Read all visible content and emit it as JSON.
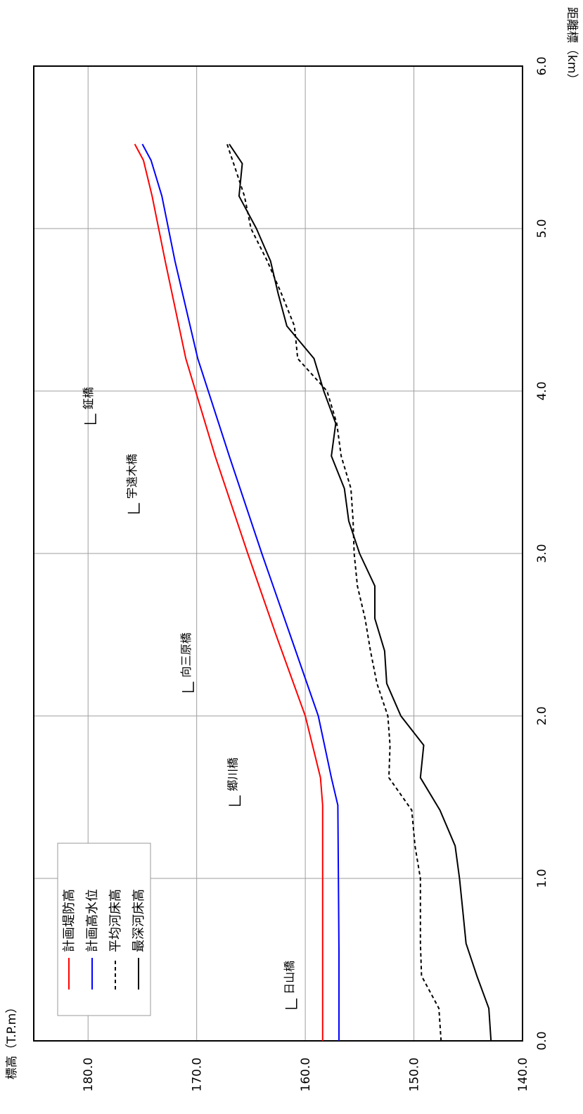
{
  "chart_data": {
    "type": "line",
    "title": "",
    "xlabel": "距離標（km）",
    "ylabel": "標高（T.P.m）",
    "xlim": [
      0.0,
      6.0
    ],
    "ylim": [
      140.0,
      185.0
    ],
    "x_ticks": [
      "0.0",
      "1.0",
      "2.0",
      "3.0",
      "4.0",
      "5.0",
      "6.0"
    ],
    "y_ticks": [
      "140.0",
      "150.0",
      "160.0",
      "170.0",
      "180.0"
    ],
    "grid": true,
    "legend_position": "top-left",
    "orientation": "rotated-90-clockwise",
    "series": [
      {
        "name": "計画堤防高",
        "color": "#ff0000",
        "style": "solid",
        "points": [
          [
            0.0,
            158.4
          ],
          [
            0.55,
            158.4
          ],
          [
            1.45,
            158.4
          ],
          [
            1.62,
            158.6
          ],
          [
            2.0,
            160.0
          ],
          [
            2.5,
            162.7
          ],
          [
            3.0,
            165.3
          ],
          [
            3.6,
            168.3
          ],
          [
            4.2,
            171.0
          ],
          [
            4.8,
            172.9
          ],
          [
            5.2,
            174.1
          ],
          [
            5.42,
            174.9
          ],
          [
            5.52,
            175.7
          ]
        ]
      },
      {
        "name": "計画高水位",
        "color": "#0000ff",
        "style": "solid",
        "points": [
          [
            0.0,
            156.9
          ],
          [
            0.55,
            156.9
          ],
          [
            1.45,
            157.0
          ],
          [
            1.62,
            157.6
          ],
          [
            2.0,
            158.8
          ],
          [
            2.5,
            161.4
          ],
          [
            3.0,
            164.0
          ],
          [
            3.6,
            167.0
          ],
          [
            4.2,
            169.9
          ],
          [
            4.8,
            172.0
          ],
          [
            5.2,
            173.2
          ],
          [
            5.42,
            174.2
          ],
          [
            5.52,
            175.0
          ]
        ]
      },
      {
        "name": "平均河床高",
        "color": "#000000",
        "style": "dashed",
        "points": [
          [
            0.0,
            147.5
          ],
          [
            0.2,
            147.7
          ],
          [
            0.4,
            149.3
          ],
          [
            0.6,
            149.4
          ],
          [
            1.0,
            149.4
          ],
          [
            1.2,
            149.9
          ],
          [
            1.42,
            150.2
          ],
          [
            1.62,
            152.3
          ],
          [
            1.82,
            152.2
          ],
          [
            2.0,
            152.4
          ],
          [
            2.2,
            153.4
          ],
          [
            2.4,
            154.0
          ],
          [
            2.6,
            154.5
          ],
          [
            2.8,
            155.2
          ],
          [
            3.0,
            155.5
          ],
          [
            3.2,
            155.6
          ],
          [
            3.4,
            155.8
          ],
          [
            3.6,
            156.7
          ],
          [
            3.8,
            157.1
          ],
          [
            4.0,
            158.0
          ],
          [
            4.2,
            160.7
          ],
          [
            4.4,
            161.0
          ],
          [
            4.6,
            162.2
          ],
          [
            4.8,
            163.5
          ],
          [
            5.0,
            165.0
          ],
          [
            5.2,
            165.6
          ],
          [
            5.4,
            166.6
          ],
          [
            5.52,
            167.2
          ]
        ]
      },
      {
        "name": "最深河床高",
        "color": "#000000",
        "style": "solid",
        "points": [
          [
            0.0,
            142.9
          ],
          [
            0.2,
            143.1
          ],
          [
            0.4,
            144.2
          ],
          [
            0.6,
            145.2
          ],
          [
            0.8,
            145.5
          ],
          [
            1.0,
            145.8
          ],
          [
            1.2,
            146.2
          ],
          [
            1.42,
            147.6
          ],
          [
            1.62,
            149.4
          ],
          [
            1.82,
            149.1
          ],
          [
            2.0,
            151.2
          ],
          [
            2.2,
            152.5
          ],
          [
            2.4,
            152.7
          ],
          [
            2.6,
            153.6
          ],
          [
            2.8,
            153.6
          ],
          [
            3.0,
            155.0
          ],
          [
            3.2,
            156.0
          ],
          [
            3.4,
            156.4
          ],
          [
            3.6,
            157.6
          ],
          [
            3.8,
            157.2
          ],
          [
            4.0,
            158.3
          ],
          [
            4.2,
            159.2
          ],
          [
            4.4,
            161.7
          ],
          [
            4.6,
            162.5
          ],
          [
            4.8,
            163.2
          ],
          [
            5.0,
            164.5
          ],
          [
            5.2,
            166.1
          ],
          [
            5.4,
            165.8
          ],
          [
            5.52,
            167.0
          ]
        ]
      }
    ],
    "annotations": [
      {
        "label": "日山橋",
        "x": 0.2,
        "y": 160.8
      },
      {
        "label": "郷川橋",
        "x": 1.45,
        "y": 166.0
      },
      {
        "label": "向三原橋",
        "x": 2.15,
        "y": 170.3
      },
      {
        "label": "宇遠木橋",
        "x": 3.25,
        "y": 175.3
      },
      {
        "label": "鉦橋",
        "x": 3.8,
        "y": 179.3
      }
    ]
  }
}
